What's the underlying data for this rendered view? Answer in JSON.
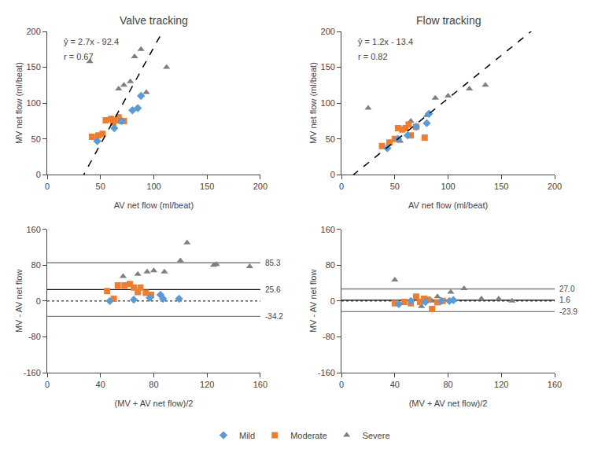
{
  "chart_data": [
    {
      "type": "scatter",
      "title": "Valve tracking",
      "x_label": "AV net flow (ml/beat)",
      "y_label": "MV net flow (ml/beat)",
      "series": [
        {
          "name": "Severe",
          "color": "#7F7F7F",
          "marker": "triangle-up",
          "x": [
            40,
            67,
            72,
            78,
            82,
            88,
            93,
            112
          ],
          "values": [
            158,
            120,
            125,
            130,
            165,
            175,
            115,
            150
          ]
        },
        {
          "name": "Moderate",
          "color": "#ED7D31",
          "marker": "square",
          "x": [
            42,
            48,
            52,
            55,
            60,
            62,
            65,
            67,
            70,
            72
          ],
          "values": [
            53,
            55,
            57,
            76,
            78,
            73,
            76,
            80,
            75,
            75
          ]
        },
        {
          "name": "Mild",
          "color": "#5B9BD5",
          "marker": "diamond",
          "x": [
            47,
            63,
            70,
            80,
            85,
            88
          ],
          "values": [
            47,
            65,
            75,
            90,
            93,
            110
          ]
        }
      ],
      "trend_line": {
        "x": [
          0,
          200
        ],
        "values": [
          -92.4,
          447.6
        ],
        "color": "#000000",
        "line_style": "dashed"
      },
      "annotations": [
        {
          "text": "ŷ = 2.7x - 92.4"
        },
        {
          "text": "r = 0.67"
        }
      ],
      "xlim": [
        0,
        200
      ],
      "ylim": [
        0,
        200
      ],
      "xticks": [
        0,
        50,
        100,
        150,
        200
      ],
      "yticks": [
        0,
        50,
        100,
        150,
        200
      ],
      "grid": false,
      "legend": "bottom"
    },
    {
      "type": "scatter",
      "title": "Flow tracking",
      "x_label": "AV net flow (ml/beat)",
      "y_label": "MV net flow (ml/beat)",
      "series": [
        {
          "name": "Severe",
          "color": "#7F7F7F",
          "marker": "triangle-up",
          "x": [
            25,
            55,
            65,
            70,
            80,
            88,
            100,
            120,
            135
          ],
          "values": [
            93,
            47,
            75,
            68,
            83,
            107,
            110,
            120,
            125
          ]
        },
        {
          "name": "Moderate",
          "color": "#ED7D31",
          "marker": "square",
          "x": [
            38,
            45,
            50,
            53,
            57,
            60,
            63,
            65,
            70,
            78
          ],
          "values": [
            40,
            45,
            50,
            65,
            63,
            65,
            70,
            55,
            67,
            52
          ]
        },
        {
          "name": "Mild",
          "color": "#5B9BD5",
          "marker": "diamond",
          "x": [
            43,
            53,
            62,
            70,
            80,
            82
          ],
          "values": [
            37,
            50,
            55,
            67,
            72,
            85
          ]
        }
      ],
      "trend_line": {
        "x": [
          0,
          200
        ],
        "values": [
          -13.4,
          226.6
        ],
        "color": "#000000",
        "line_style": "dashed"
      },
      "annotations": [
        {
          "text": "ŷ = 1.2x - 13.4"
        },
        {
          "text": "r = 0.82"
        }
      ],
      "xlim": [
        0,
        200
      ],
      "ylim": [
        0,
        200
      ],
      "xticks": [
        0,
        50,
        100,
        150,
        200
      ],
      "yticks": [
        0,
        50,
        100,
        150,
        200
      ],
      "grid": false
    },
    {
      "type": "scatter",
      "x_label": "(MV + AV net flow)/2",
      "y_label": "MV - AV net flow",
      "series": [
        {
          "name": "Severe",
          "color": "#7F7F7F",
          "marker": "triangle-up",
          "x": [
            57,
            68,
            75,
            80,
            88,
            100,
            105,
            125,
            127,
            152
          ],
          "values": [
            55,
            60,
            65,
            68,
            65,
            90,
            130,
            80,
            82,
            77
          ]
        },
        {
          "name": "Moderate",
          "color": "#ED7D31",
          "marker": "square",
          "x": [
            45,
            50,
            53,
            58,
            62,
            65,
            68,
            70,
            74,
            78
          ],
          "values": [
            22,
            5,
            35,
            35,
            38,
            30,
            20,
            30,
            18,
            14
          ]
        },
        {
          "name": "Mild",
          "color": "#5B9BD5",
          "marker": "diamond",
          "x": [
            47,
            65,
            77,
            85,
            87,
            99
          ],
          "values": [
            0,
            3,
            7,
            14,
            5,
            5
          ]
        }
      ],
      "hlines": [
        {
          "value": 25.6,
          "color": "#000000",
          "line_style": "solid"
        },
        {
          "value": 85.3,
          "color": "#808080",
          "line_style": "solid"
        },
        {
          "value": -34.2,
          "color": "#808080",
          "line_style": "solid"
        },
        {
          "value": 0,
          "color": "#000000",
          "line_style": "dotted"
        }
      ],
      "annotations": [
        {
          "text": "85.3",
          "y": 85.3
        },
        {
          "text": "25.6",
          "y": 25.6
        },
        {
          "text": "-34.2",
          "y": -34.2
        }
      ],
      "xlim": [
        0,
        160
      ],
      "ylim": [
        -160,
        160
      ],
      "xticks": [
        0,
        40,
        80,
        120,
        160
      ],
      "yticks": [
        -160,
        -80,
        0,
        80,
        160
      ],
      "grid": false
    },
    {
      "type": "scatter",
      "x_label": "(MV + AV net flow)/2",
      "y_label": "MV - AV net flow",
      "series": [
        {
          "name": "Severe",
          "color": "#7F7F7F",
          "marker": "triangle-up",
          "x": [
            40,
            60,
            68,
            72,
            82,
            92,
            105,
            118,
            128
          ],
          "values": [
            47,
            -12,
            0,
            10,
            20,
            28,
            5,
            5,
            0
          ]
        },
        {
          "name": "Moderate",
          "color": "#ED7D31",
          "marker": "square",
          "x": [
            40,
            47,
            52,
            56,
            59,
            62,
            65,
            68,
            72,
            76
          ],
          "values": [
            -5,
            -2,
            -5,
            10,
            -2,
            5,
            3,
            -18,
            -3,
            0
          ]
        },
        {
          "name": "Mild",
          "color": "#5B9BD5",
          "marker": "diamond",
          "x": [
            43,
            52,
            63,
            75,
            81,
            84
          ],
          "values": [
            -7,
            0,
            -2,
            0,
            0,
            2
          ]
        }
      ],
      "hlines": [
        {
          "value": 1.6,
          "color": "#000000",
          "line_style": "solid"
        },
        {
          "value": 27.0,
          "color": "#808080",
          "line_style": "solid"
        },
        {
          "value": -23.9,
          "color": "#808080",
          "line_style": "solid"
        },
        {
          "value": 0,
          "color": "#000000",
          "line_style": "dotted"
        }
      ],
      "annotations": [
        {
          "text": "27.0",
          "y": 27.0
        },
        {
          "text": "1.6",
          "y": 1.6
        },
        {
          "text": "-23.9",
          "y": -23.9
        }
      ],
      "xlim": [
        0,
        160
      ],
      "ylim": [
        -160,
        160
      ],
      "xticks": [
        0,
        40,
        80,
        120,
        160
      ],
      "yticks": [
        -160,
        -80,
        0,
        80,
        160
      ],
      "grid": false
    }
  ]
}
